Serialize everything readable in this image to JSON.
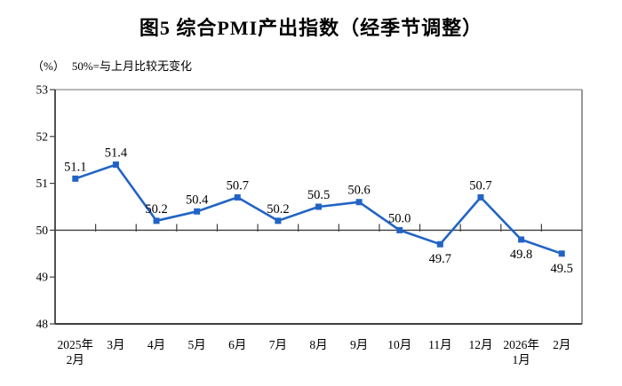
{
  "chart_data": {
    "type": "line",
    "title": "图5 综合PMI产出指数（经季节调整）",
    "unit_label": "（%）",
    "note": "50%=与上月比较无变化",
    "categories": [
      "2025年2月",
      "3月",
      "4月",
      "5月",
      "6月",
      "7月",
      "8月",
      "9月",
      "10月",
      "11月",
      "12月",
      "2026年1月",
      "2月"
    ],
    "category_display": [
      [
        "2025年",
        "2月"
      ],
      [
        "3月"
      ],
      [
        "4月"
      ],
      [
        "5月"
      ],
      [
        "6月"
      ],
      [
        "7月"
      ],
      [
        "8月"
      ],
      [
        "9月"
      ],
      [
        "10月"
      ],
      [
        "11月"
      ],
      [
        "12月"
      ],
      [
        "2026年",
        "1月"
      ],
      [
        "2月"
      ]
    ],
    "series": [
      {
        "name": "综合PMI产出指数",
        "values": [
          51.1,
          51.4,
          50.2,
          50.4,
          50.7,
          50.2,
          50.5,
          50.6,
          50.0,
          49.7,
          50.7,
          49.8,
          49.5
        ]
      }
    ],
    "label_position": [
      "above",
      "above",
      "above",
      "above",
      "above",
      "above",
      "above",
      "above",
      "above",
      "below",
      "above",
      "below",
      "below"
    ],
    "ylim": [
      48,
      53
    ],
    "yticks": [
      48,
      49,
      50,
      51,
      52,
      53
    ],
    "reference_line": 50,
    "grid": false,
    "legend": "none",
    "colors": {
      "line": "#2264C5",
      "marker": "#2264C5",
      "axis_dark": "#3f3f3f",
      "border_gray": "#8c8c8c",
      "text": "#000000"
    }
  }
}
